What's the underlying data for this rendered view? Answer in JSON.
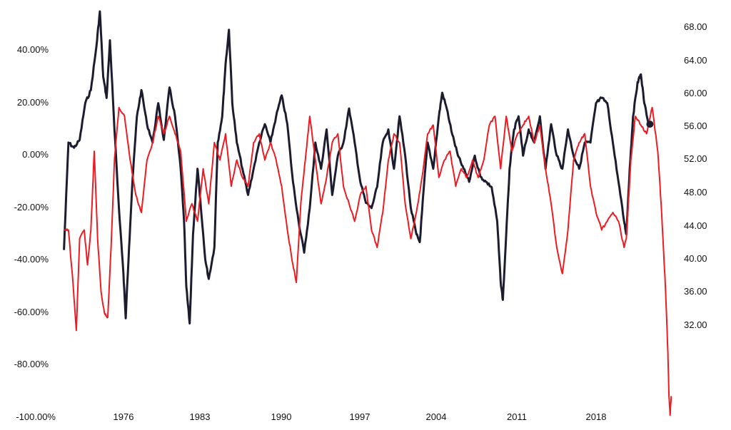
{
  "chart_data": {
    "type": "line",
    "title": "",
    "xlabel": "",
    "ylabel": "",
    "y2label": "",
    "grid": false,
    "legend": "none",
    "xlim": [
      1970,
      2024.5
    ],
    "ylim": [
      -100,
      55
    ],
    "y2lim": [
      25.5,
      72
    ],
    "x_ticks": [
      "1976",
      "1983",
      "1990",
      "1997",
      "2004",
      "2011",
      "2018"
    ],
    "y_ticks": [
      "40.00%",
      "20.00%",
      "0.00%",
      "-20.00%",
      "-40.00%",
      "-60.00%",
      "-80.00%",
      "-100.00%"
    ],
    "y2_ticks": [
      "68.00",
      "64.00",
      "60.00",
      "56.00",
      "52.00",
      "48.00",
      "44.00",
      "40.00",
      "36.00",
      "32.00"
    ],
    "series": [
      {
        "axis": "left",
        "color": "#1b1c2e",
        "points": [
          [
            1970.1,
            -36
          ],
          [
            1970.5,
            5
          ],
          [
            1971.0,
            3
          ],
          [
            1971.5,
            6
          ],
          [
            1972.0,
            20
          ],
          [
            1972.5,
            25
          ],
          [
            1973.0,
            42
          ],
          [
            1973.3,
            55
          ],
          [
            1973.6,
            30
          ],
          [
            1973.9,
            22
          ],
          [
            1974.2,
            44
          ],
          [
            1974.6,
            10
          ],
          [
            1975.0,
            -20
          ],
          [
            1975.4,
            -45
          ],
          [
            1975.6,
            -62
          ],
          [
            1975.9,
            -35
          ],
          [
            1976.2,
            -10
          ],
          [
            1976.6,
            15
          ],
          [
            1977.0,
            25
          ],
          [
            1977.5,
            12
          ],
          [
            1978.0,
            5
          ],
          [
            1978.5,
            20
          ],
          [
            1979.0,
            6
          ],
          [
            1979.5,
            26
          ],
          [
            1980.0,
            15
          ],
          [
            1980.5,
            -5
          ],
          [
            1980.8,
            -25
          ],
          [
            1981.0,
            -50
          ],
          [
            1981.3,
            -64
          ],
          [
            1981.6,
            -30
          ],
          [
            1982.0,
            -5
          ],
          [
            1982.3,
            -20
          ],
          [
            1982.7,
            -40
          ],
          [
            1983.0,
            -47
          ],
          [
            1983.5,
            -35
          ],
          [
            1983.8,
            5
          ],
          [
            1984.2,
            15
          ],
          [
            1984.5,
            35
          ],
          [
            1984.8,
            48
          ],
          [
            1985.1,
            20
          ],
          [
            1985.5,
            5
          ],
          [
            1986.0,
            -5
          ],
          [
            1986.5,
            -15
          ],
          [
            1987.0,
            -5
          ],
          [
            1987.5,
            5
          ],
          [
            1988.0,
            12
          ],
          [
            1988.5,
            5
          ],
          [
            1989.0,
            15
          ],
          [
            1989.5,
            23
          ],
          [
            1990.0,
            12
          ],
          [
            1990.5,
            -10
          ],
          [
            1991.0,
            -25
          ],
          [
            1991.5,
            -37
          ],
          [
            1992.0,
            -20
          ],
          [
            1992.5,
            5
          ],
          [
            1993.0,
            -5
          ],
          [
            1993.5,
            10
          ],
          [
            1994.0,
            -15
          ],
          [
            1994.5,
            0
          ],
          [
            1995.0,
            5
          ],
          [
            1995.5,
            18
          ],
          [
            1996.0,
            5
          ],
          [
            1996.5,
            -10
          ],
          [
            1997.0,
            -18
          ],
          [
            1997.5,
            -20
          ],
          [
            1998.0,
            -12
          ],
          [
            1998.5,
            5
          ],
          [
            1999.0,
            10
          ],
          [
            1999.5,
            -5
          ],
          [
            2000.0,
            15
          ],
          [
            2000.5,
            0
          ],
          [
            2001.0,
            -20
          ],
          [
            2001.5,
            -30
          ],
          [
            2001.8,
            -33
          ],
          [
            2002.2,
            -10
          ],
          [
            2002.5,
            5
          ],
          [
            2003.0,
            -5
          ],
          [
            2003.5,
            15
          ],
          [
            2003.8,
            24
          ],
          [
            2004.2,
            18
          ],
          [
            2004.7,
            8
          ],
          [
            2005.2,
            0
          ],
          [
            2005.7,
            -5
          ],
          [
            2006.2,
            -10
          ],
          [
            2006.7,
            0
          ],
          [
            2007.2,
            -8
          ],
          [
            2007.7,
            -10
          ],
          [
            2008.2,
            -12
          ],
          [
            2008.7,
            -25
          ],
          [
            2009.0,
            -48
          ],
          [
            2009.2,
            -55
          ],
          [
            2009.5,
            -30
          ],
          [
            2009.8,
            -5
          ],
          [
            2010.2,
            10
          ],
          [
            2010.6,
            15
          ],
          [
            2011.0,
            0
          ],
          [
            2011.5,
            10
          ],
          [
            2012.0,
            5
          ],
          [
            2012.5,
            15
          ],
          [
            2013.0,
            -5
          ],
          [
            2013.5,
            12
          ],
          [
            2014.0,
            0
          ],
          [
            2014.5,
            -5
          ],
          [
            2015.0,
            10
          ],
          [
            2015.5,
            0
          ],
          [
            2016.0,
            -5
          ],
          [
            2016.5,
            5
          ],
          [
            2017.0,
            5
          ],
          [
            2017.5,
            20
          ],
          [
            2018.0,
            22
          ],
          [
            2018.5,
            20
          ],
          [
            2019.0,
            5
          ],
          [
            2019.5,
            -10
          ],
          [
            2020.0,
            -25
          ],
          [
            2020.2,
            -30
          ],
          [
            2020.5,
            -5
          ],
          [
            2020.8,
            15
          ],
          [
            2021.2,
            28
          ],
          [
            2021.5,
            31
          ],
          [
            2021.8,
            20
          ],
          [
            2022.2,
            12
          ]
        ]
      },
      {
        "axis": "right",
        "color": "#ee1b22",
        "points": [
          [
            1970.1,
            47
          ],
          [
            1970.5,
            47
          ],
          [
            1970.9,
            41
          ],
          [
            1971.2,
            35.5
          ],
          [
            1971.5,
            46
          ],
          [
            1971.9,
            47
          ],
          [
            1972.2,
            43
          ],
          [
            1972.5,
            47
          ],
          [
            1972.8,
            56
          ],
          [
            1973.1,
            46
          ],
          [
            1973.4,
            40
          ],
          [
            1973.7,
            37.5
          ],
          [
            1974.0,
            37
          ],
          [
            1974.3,
            45
          ],
          [
            1974.6,
            55
          ],
          [
            1975.0,
            61
          ],
          [
            1975.5,
            60
          ],
          [
            1976.0,
            55
          ],
          [
            1976.5,
            51
          ],
          [
            1977.0,
            49
          ],
          [
            1977.5,
            55
          ],
          [
            1978.0,
            57
          ],
          [
            1978.5,
            60
          ],
          [
            1979.0,
            58
          ],
          [
            1979.5,
            60
          ],
          [
            1980.0,
            58
          ],
          [
            1980.5,
            56
          ],
          [
            1981.0,
            48
          ],
          [
            1981.5,
            50
          ],
          [
            1982.0,
            48
          ],
          [
            1982.5,
            54
          ],
          [
            1983.0,
            50
          ],
          [
            1983.5,
            57
          ],
          [
            1984.0,
            55
          ],
          [
            1984.5,
            58
          ],
          [
            1985.0,
            52
          ],
          [
            1985.5,
            55
          ],
          [
            1986.0,
            53
          ],
          [
            1986.5,
            52
          ],
          [
            1987.0,
            57
          ],
          [
            1987.5,
            58
          ],
          [
            1988.0,
            55
          ],
          [
            1988.5,
            57
          ],
          [
            1989.0,
            55
          ],
          [
            1989.5,
            52
          ],
          [
            1990.0,
            47
          ],
          [
            1990.5,
            43
          ],
          [
            1990.8,
            41
          ],
          [
            1991.2,
            50
          ],
          [
            1991.6,
            55
          ],
          [
            1992.0,
            60
          ],
          [
            1992.5,
            55
          ],
          [
            1993.0,
            50
          ],
          [
            1993.5,
            53
          ],
          [
            1994.0,
            57
          ],
          [
            1994.5,
            58
          ],
          [
            1995.0,
            52
          ],
          [
            1995.5,
            50
          ],
          [
            1996.0,
            48
          ],
          [
            1996.5,
            51
          ],
          [
            1997.0,
            52
          ],
          [
            1997.5,
            47
          ],
          [
            1998.0,
            45
          ],
          [
            1998.5,
            49
          ],
          [
            1999.0,
            55
          ],
          [
            1999.5,
            58
          ],
          [
            2000.0,
            57
          ],
          [
            2000.5,
            50
          ],
          [
            2001.0,
            46
          ],
          [
            2001.5,
            49
          ],
          [
            2002.0,
            53
          ],
          [
            2002.5,
            58
          ],
          [
            2003.0,
            59
          ],
          [
            2003.5,
            53
          ],
          [
            2004.0,
            55
          ],
          [
            2004.5,
            56
          ],
          [
            2005.0,
            52
          ],
          [
            2005.5,
            54
          ],
          [
            2006.0,
            53
          ],
          [
            2006.5,
            55
          ],
          [
            2007.0,
            53
          ],
          [
            2007.5,
            55
          ],
          [
            2008.0,
            59
          ],
          [
            2008.5,
            60
          ],
          [
            2009.0,
            54
          ],
          [
            2009.5,
            60
          ],
          [
            2010.0,
            56
          ],
          [
            2010.5,
            58
          ],
          [
            2011.0,
            59
          ],
          [
            2011.5,
            60
          ],
          [
            2012.0,
            57
          ],
          [
            2012.5,
            59
          ],
          [
            2013.0,
            54
          ],
          [
            2013.5,
            50
          ],
          [
            2014.0,
            45
          ],
          [
            2014.5,
            42
          ],
          [
            2015.0,
            47
          ],
          [
            2015.5,
            55
          ],
          [
            2016.0,
            57
          ],
          [
            2016.5,
            58
          ],
          [
            2017.0,
            52
          ],
          [
            2017.5,
            49
          ],
          [
            2018.0,
            47
          ],
          [
            2018.5,
            48
          ],
          [
            2019.0,
            49
          ],
          [
            2019.5,
            48
          ],
          [
            2020.0,
            45
          ],
          [
            2020.2,
            46
          ],
          [
            2020.6,
            55
          ],
          [
            2021.0,
            60
          ],
          [
            2021.5,
            59
          ],
          [
            2022.0,
            58
          ],
          [
            2022.5,
            61
          ],
          [
            2023.0,
            56
          ],
          [
            2023.3,
            50
          ],
          [
            2023.5,
            45
          ],
          [
            2023.7,
            40
          ],
          [
            2023.9,
            33
          ],
          [
            2024.0,
            28
          ],
          [
            2024.1,
            25.8
          ],
          [
            2024.2,
            28
          ]
        ]
      }
    ],
    "marker": {
      "series": 0,
      "x": 2022.3,
      "y": 12
    }
  }
}
